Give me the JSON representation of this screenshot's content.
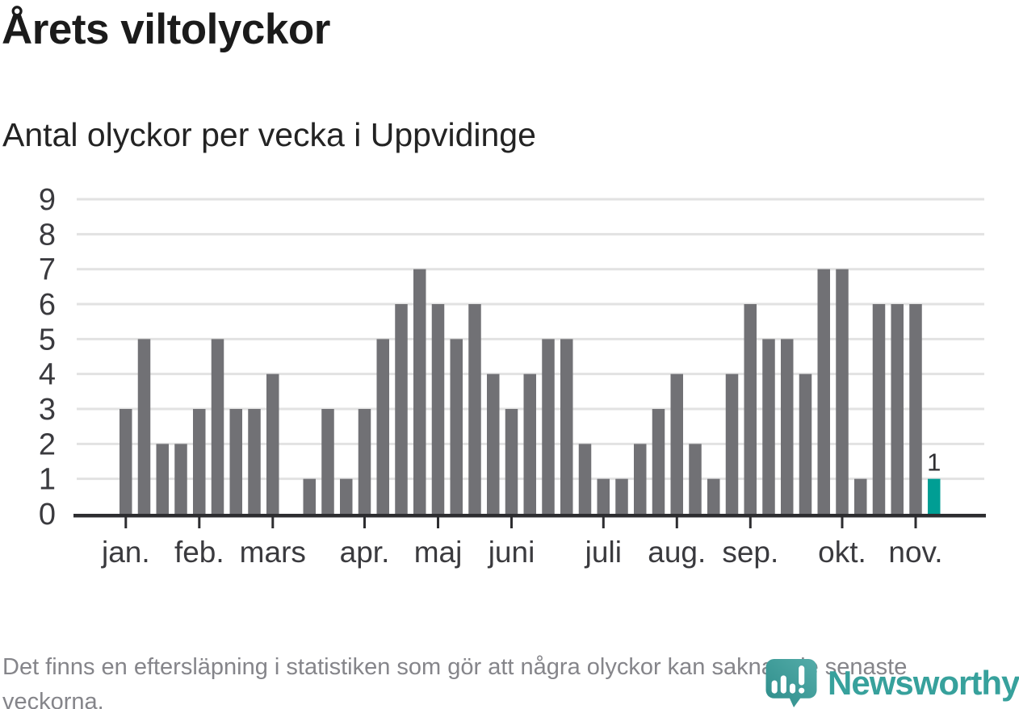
{
  "header": {
    "title": "Årets viltolyckor",
    "subtitle": "Antal olyckor per vecka i Uppvidinge"
  },
  "footer": {
    "note": "Det finns en eftersläpning i statistiken som gör att några olyckor kan saknas de senaste veckorna.",
    "brand": "Newsworthy"
  },
  "chart_data": {
    "type": "bar",
    "title": "Årets viltolyckor",
    "subtitle": "Antal olyckor per vecka i Uppvidinge",
    "xlabel": "",
    "ylabel": "",
    "x_unit": "vecka",
    "ylim": [
      0,
      9
    ],
    "yticks": [
      0,
      1,
      2,
      3,
      4,
      5,
      6,
      7,
      8,
      9
    ],
    "grid": true,
    "legend": "none",
    "values": [
      3,
      5,
      2,
      2,
      3,
      5,
      3,
      3,
      4,
      null,
      1,
      3,
      1,
      3,
      5,
      6,
      7,
      6,
      5,
      6,
      4,
      3,
      4,
      5,
      5,
      2,
      1,
      1,
      2,
      3,
      4,
      2,
      1,
      4,
      6,
      5,
      5,
      4,
      7,
      7,
      1,
      6,
      6,
      6,
      1
    ],
    "highlight_index": 44,
    "highlight_value_label": "1",
    "month_ticks": [
      {
        "label": "jan.",
        "week": 1
      },
      {
        "label": "feb.",
        "week": 5
      },
      {
        "label": "mars",
        "week": 9
      },
      {
        "label": "apr.",
        "week": 14
      },
      {
        "label": "maj",
        "week": 18
      },
      {
        "label": "juni",
        "week": 22
      },
      {
        "label": "juli",
        "week": 27
      },
      {
        "label": "aug.",
        "week": 31
      },
      {
        "label": "sep.",
        "week": 35
      },
      {
        "label": "okt.",
        "week": 40
      },
      {
        "label": "nov.",
        "week": 44
      }
    ],
    "colors": {
      "bar": "#717175",
      "highlight": "#009e94",
      "grid": "#e2e2e2",
      "axis": "#2d2d30",
      "tick_text": "#3a3a3e",
      "value_label": "#2e2e31",
      "brand_teal": "#37a19c"
    }
  }
}
